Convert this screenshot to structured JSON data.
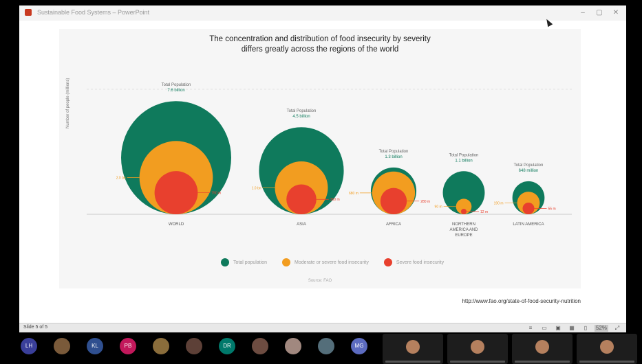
{
  "window": {
    "title": "Sustainable Food Systems – PowerPoint",
    "controls": {
      "minimize": "–",
      "maximize": "▢",
      "close": "✕"
    }
  },
  "slide": {
    "title_line1": "The concentration and distribution of food insecurity by severity",
    "title_line2": "differs greatly across the regions of the world",
    "y_axis_label": "Number of people (millions)",
    "source": "Source: FAO",
    "url": "http://www.fao.org/state-of-food-security-nutrition"
  },
  "chart_data": {
    "type": "bubble",
    "series": [
      {
        "name": "Total population",
        "color": "#0f7a5c"
      },
      {
        "name": "Moderate or severe food insecurity",
        "color": "#f29d20"
      },
      {
        "name": "Severe food insecurity",
        "color": "#e8402e"
      }
    ],
    "regions": [
      {
        "name": "WORLD",
        "name_lines": [
          "WORLD"
        ],
        "pop_label": "Total Population",
        "pop_value": "7.6 billion",
        "total": 7600,
        "moderate": 2000,
        "severe": 750,
        "moderate_label": "2.0 bn",
        "severe_label": "750 m"
      },
      {
        "name": "ASIA",
        "name_lines": [
          "ASIA"
        ],
        "pop_label": "Total Population",
        "pop_value": "4.5 billion",
        "total": 4500,
        "moderate": 1040,
        "severe": 360,
        "moderate_label": "1.0 bn",
        "severe_label": "360 m"
      },
      {
        "name": "AFRICA",
        "name_lines": [
          "AFRICA"
        ],
        "pop_label": "Total Population",
        "pop_value": "1.3 billion",
        "total": 1300,
        "moderate": 680,
        "severe": 280,
        "moderate_label": "680 m",
        "severe_label": "280 m"
      },
      {
        "name": "NORTHERN AMERICA AND EUROPE",
        "name_lines": [
          "NORTHERN",
          "AMERICA AND",
          "EUROPE"
        ],
        "pop_label": "Total Population",
        "pop_value": "1.1 billion",
        "total": 1100,
        "moderate": 90,
        "severe": 12,
        "moderate_label": "90 m",
        "severe_label": "12 m"
      },
      {
        "name": "LATIN AMERICA",
        "name_lines": [
          "LATIN AMERICA"
        ],
        "pop_label": "Total Population",
        "pop_value": "648 million",
        "total": 648,
        "moderate": 190,
        "severe": 55,
        "moderate_label": "190 m",
        "severe_label": "55 m"
      }
    ]
  },
  "status": {
    "slide_indicator": "Slide 5 of 5",
    "zoom": "52%"
  },
  "participants": {
    "avatars": [
      {
        "initials": "LH",
        "color": "#3a3f9a"
      },
      {
        "initials": "",
        "color": "#7a5a3a"
      },
      {
        "initials": "KL",
        "color": "#2f4f8f"
      },
      {
        "initials": "PB",
        "color": "#c2185b"
      },
      {
        "initials": "",
        "color": "#8a6d3b"
      },
      {
        "initials": "",
        "color": "#5d4037"
      },
      {
        "initials": "DR",
        "color": "#00796b"
      },
      {
        "initials": "",
        "color": "#6d4c41"
      },
      {
        "initials": "",
        "color": "#a1887f"
      },
      {
        "initials": "",
        "color": "#546e7a"
      },
      {
        "initials": "MG",
        "color": "#5c6bc0"
      }
    ]
  }
}
